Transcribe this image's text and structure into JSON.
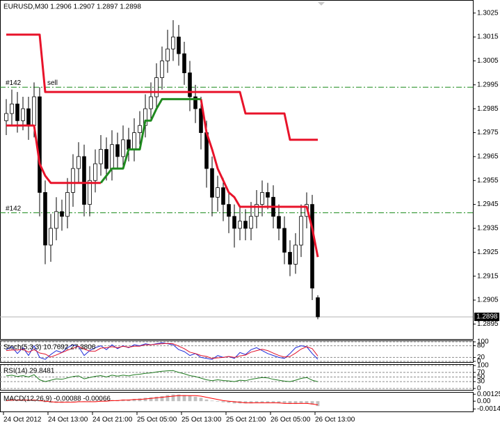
{
  "chart_data": [
    {
      "type": "candlestick",
      "title": "EURUSD,M30  1.2906 1.2907 1.2897 1.2898",
      "xlim": [
        0,
        84
      ],
      "xticks": [
        {
          "value": 0,
          "label": "24 Oct 2012"
        },
        {
          "value": 8,
          "label": "24 Oct 13:00"
        },
        {
          "value": 16,
          "label": "24 Oct 21:00"
        },
        {
          "value": 24,
          "label": "25 Oct 05:00"
        },
        {
          "value": 32,
          "label": "25 Oct 13:00"
        },
        {
          "value": 40,
          "label": "25 Oct 21:00"
        },
        {
          "value": 48,
          "label": "26 Oct 05:00"
        },
        {
          "value": 56,
          "label": "26 Oct 13:00"
        }
      ],
      "ylim": [
        1.2889,
        1.3029
      ],
      "yticks": [
        1.3025,
        1.3015,
        1.3005,
        1.2995,
        1.2985,
        1.2975,
        1.2965,
        1.2955,
        1.2945,
        1.2935,
        1.2925,
        1.2915,
        1.2905,
        1.2895
      ],
      "grid": false,
      "colors": {
        "up": "#ffffff",
        "down": "#000000",
        "wick": "#000000"
      },
      "open": [
        1.298,
        1.2983,
        1.2987,
        1.298,
        1.2985,
        1.2978,
        1.299,
        1.295,
        1.2928,
        1.2935,
        1.2942,
        1.294,
        1.295,
        1.296,
        1.2965,
        1.2945,
        1.2955,
        1.2962,
        1.2968,
        1.296,
        1.297,
        1.2965,
        1.2972,
        1.2968,
        1.2975,
        1.2978,
        1.2985,
        1.299,
        1.2998,
        1.3005,
        1.301,
        1.3015,
        1.3008,
        1.3,
        1.299,
        1.2985,
        1.2975,
        1.296,
        1.2948,
        1.2952,
        1.2945,
        1.294,
        1.2935,
        1.2938,
        1.2935,
        1.294,
        1.2945,
        1.295,
        1.2948,
        1.294,
        1.2935,
        1.2925,
        1.292,
        1.2928,
        1.294,
        1.2945,
        1.2906
      ],
      "high": [
        1.2989,
        1.2993,
        1.2992,
        1.299,
        1.299,
        1.2996,
        1.2994,
        1.2955,
        1.2941,
        1.2948,
        1.2947,
        1.2956,
        1.2966,
        1.2971,
        1.297,
        1.2961,
        1.2968,
        1.2974,
        1.2973,
        1.2976,
        1.2975,
        1.2978,
        1.2977,
        1.2981,
        1.2984,
        1.2991,
        1.2996,
        1.3004,
        1.3011,
        1.3018,
        1.3022,
        1.302,
        1.3013,
        1.3005,
        1.2995,
        1.299,
        1.298,
        1.2965,
        1.2957,
        1.2956,
        1.295,
        1.2945,
        1.2944,
        1.2943,
        1.2946,
        1.2951,
        1.2955,
        1.2954,
        1.2953,
        1.2945,
        1.294,
        1.293,
        1.2933,
        1.2945,
        1.295,
        1.2949,
        1.2907
      ],
      "low": [
        1.2974,
        1.2978,
        1.2975,
        1.2976,
        1.2972,
        1.2973,
        1.294,
        1.292,
        1.2921,
        1.293,
        1.2934,
        1.2935,
        1.2944,
        1.2954,
        1.294,
        1.294,
        1.295,
        1.2957,
        1.2955,
        1.2955,
        1.296,
        1.296,
        1.2963,
        1.2963,
        1.297,
        1.2973,
        1.298,
        1.2985,
        1.2993,
        1.3,
        1.3005,
        1.3003,
        1.2995,
        1.2984,
        1.2979,
        1.2968,
        1.2952,
        1.294,
        1.2942,
        1.2938,
        1.2933,
        1.2927,
        1.293,
        1.293,
        1.293,
        1.2935,
        1.294,
        1.2943,
        1.2935,
        1.293,
        1.292,
        1.2915,
        1.2916,
        1.2923,
        1.2935,
        1.2905,
        1.2897
      ],
      "close": [
        1.2983,
        1.2987,
        1.298,
        1.2985,
        1.2978,
        1.299,
        1.295,
        1.2928,
        1.2935,
        1.2942,
        1.294,
        1.295,
        1.296,
        1.2965,
        1.2945,
        1.2955,
        1.2962,
        1.2968,
        1.296,
        1.297,
        1.2965,
        1.2972,
        1.2968,
        1.2975,
        1.2978,
        1.2985,
        1.299,
        1.2998,
        1.3005,
        1.301,
        1.3015,
        1.3008,
        1.3,
        1.299,
        1.2985,
        1.2975,
        1.296,
        1.2948,
        1.2952,
        1.2945,
        1.294,
        1.2935,
        1.2938,
        1.2935,
        1.294,
        1.2945,
        1.295,
        1.2948,
        1.294,
        1.2935,
        1.2925,
        1.292,
        1.2928,
        1.294,
        1.2945,
        1.291,
        1.2898
      ],
      "lines": [
        {
          "color": "#e8132a",
          "values": [
            1.3016,
            1.3016,
            1.3016,
            1.3016,
            1.3016,
            1.3016,
            1.3016,
            1.2992,
            1.2992,
            1.2992,
            1.2992,
            1.2992,
            1.2992,
            1.2992,
            1.2992,
            1.2992,
            1.2992,
            1.2992,
            1.2992,
            1.2992,
            1.2992,
            1.2992,
            1.2992,
            1.2992,
            1.2992,
            1.2992,
            1.2992,
            1.2992,
            1.2992,
            1.2992,
            1.2992,
            1.2992,
            1.2992,
            1.2992,
            1.2992,
            1.2992,
            1.2992,
            1.2992,
            1.2992,
            1.2992,
            1.2992,
            1.2992,
            1.2992,
            1.2983,
            1.2983,
            1.2983,
            1.2983,
            1.2983,
            1.2983,
            1.2983,
            1.2983,
            1.2972,
            1.2972,
            1.2972,
            1.2972,
            1.2972,
            1.2972
          ]
        },
        {
          "color": "#e8132a",
          "values": [
            1.2978,
            1.2978,
            1.2978,
            1.2978,
            1.2978,
            1.2978,
            1.2962,
            1.2957,
            1.2954,
            1.2954,
            1.2954,
            1.2954,
            1.2954,
            1.2954,
            1.2954,
            1.2954,
            1.2954,
            1.2954,
            null,
            null,
            null,
            null,
            null,
            null,
            null,
            null,
            null,
            null,
            null,
            null,
            null,
            null,
            null,
            null,
            null,
            1.2989,
            1.2975,
            1.2968,
            1.296,
            1.2955,
            1.295,
            1.2948,
            1.2944,
            1.2944,
            1.2944,
            1.2944,
            1.2944,
            1.2944,
            1.2944,
            1.2944,
            1.2944,
            1.2944,
            1.2944,
            1.2944,
            1.2944,
            1.2935,
            1.2923
          ]
        },
        {
          "color": "#1f8a1f",
          "values": [
            null,
            null,
            null,
            null,
            null,
            null,
            null,
            null,
            null,
            null,
            null,
            null,
            null,
            null,
            null,
            null,
            null,
            1.2954,
            1.2957,
            1.296,
            1.296,
            1.296,
            1.2968,
            1.2968,
            1.2968,
            1.298,
            1.298,
            1.2985,
            1.2989,
            1.2989,
            1.2989,
            1.2989,
            1.2989,
            1.2989,
            1.2989,
            1.2989,
            null,
            null,
            null,
            null,
            null,
            null,
            null,
            null,
            null,
            null,
            null,
            null,
            null,
            null,
            null,
            null,
            null,
            null,
            null,
            null,
            null
          ]
        }
      ],
      "hlines": [
        {
          "value": 1.2994,
          "label": "#142",
          "text": "sell",
          "color": "#1a8a1a"
        },
        {
          "value": 1.29415,
          "label": "#142",
          "color": "#1a8a1a"
        }
      ],
      "current_price": {
        "value": 1.2898,
        "label": "1.2898"
      }
    },
    {
      "type": "line",
      "title": "Stoch(5,3,3) 10.7692 27.3806",
      "ylim": [
        0,
        100
      ],
      "yticks": [
        100,
        80,
        20,
        0
      ],
      "grid": true,
      "series": [
        {
          "color": "#1e2bd8",
          "values": [
            60,
            75,
            40,
            70,
            30,
            80,
            20,
            10,
            35,
            55,
            45,
            70,
            85,
            75,
            30,
            55,
            70,
            80,
            60,
            85,
            65,
            80,
            70,
            85,
            80,
            90,
            85,
            90,
            95,
            90,
            85,
            60,
            50,
            30,
            40,
            20,
            15,
            10,
            30,
            20,
            25,
            15,
            45,
            35,
            60,
            70,
            55,
            40,
            30,
            20,
            15,
            40,
            70,
            80,
            75,
            40,
            10.7692
          ]
        },
        {
          "color": "#e0102a",
          "values": [
            55,
            58,
            58,
            62,
            47,
            60,
            43,
            37,
            22,
            33,
            45,
            57,
            67,
            77,
            63,
            53,
            52,
            68,
            70,
            75,
            70,
            77,
            72,
            78,
            78,
            85,
            85,
            88,
            90,
            92,
            90,
            78,
            65,
            47,
            40,
            30,
            25,
            15,
            18,
            20,
            25,
            20,
            28,
            32,
            47,
            55,
            62,
            55,
            42,
            30,
            22,
            25,
            42,
            63,
            75,
            65,
            27.3806
          ]
        }
      ]
    },
    {
      "type": "line",
      "title": "RSI(14) 29.8481",
      "ylim": [
        0,
        100
      ],
      "yticks": [
        100,
        70,
        50,
        30,
        0
      ],
      "grid": true,
      "series": [
        {
          "color": "#1f7a1f",
          "values": [
            55,
            58,
            52,
            56,
            50,
            60,
            38,
            30,
            36,
            42,
            40,
            46,
            52,
            55,
            42,
            48,
            53,
            56,
            50,
            58,
            54,
            58,
            55,
            60,
            62,
            66,
            68,
            72,
            75,
            77,
            78,
            70,
            64,
            56,
            52,
            45,
            38,
            34,
            38,
            35,
            33,
            30,
            36,
            34,
            40,
            44,
            48,
            46,
            40,
            36,
            32,
            30,
            36,
            44,
            48,
            36,
            29.8481
          ]
        }
      ]
    },
    {
      "type": "bar",
      "title": "MACD(12,26,9) -0.00088 -0.00066",
      "ylim": [
        -0.0016,
        0.0014
      ],
      "yticks": [
        0.00125,
        {
          "value": 0,
          "label": "0.00"
        },
        -0.0014
      ],
      "grid": false,
      "color": "#c0c0c0",
      "values": [
        0.0002,
        0.0002,
        0.0002,
        0.0002,
        0.0001,
        0.0002,
        0.0,
        -0.0002,
        -0.0003,
        -0.0003,
        -0.0003,
        -0.0002,
        -0.0001,
        0.0,
        -0.0001,
        -0.0001,
        0.0,
        0.0001,
        0.0001,
        0.0002,
        0.0002,
        0.0003,
        0.0003,
        0.0004,
        0.0005,
        0.0006,
        0.0007,
        0.0008,
        0.0009,
        0.0011,
        0.0012,
        0.0012,
        0.0011,
        0.001,
        0.0008,
        0.0006,
        0.0003,
        0.0001,
        -0.0001,
        -0.0002,
        -0.0003,
        -0.0004,
        -0.0004,
        -0.0004,
        -0.0004,
        -0.0003,
        -0.0003,
        -0.0003,
        -0.0003,
        -0.0004,
        -0.0004,
        -0.0005,
        -0.0005,
        -0.0004,
        -0.0004,
        -0.0006,
        -0.00088
      ],
      "series": [
        {
          "color": "#ff0000",
          "values": [
            0.0001,
            0.0002,
            0.0002,
            0.0002,
            0.0002,
            0.0002,
            0.0001,
            0.0,
            -0.0001,
            -0.0002,
            -0.0002,
            -0.0002,
            -0.0002,
            -0.0001,
            -0.0001,
            -0.0001,
            -0.0001,
            0.0,
            0.0,
            0.0001,
            0.0001,
            0.0002,
            0.0002,
            0.0003,
            0.0003,
            0.0004,
            0.0005,
            0.0006,
            0.0007,
            0.0008,
            0.0009,
            0.001,
            0.001,
            0.001,
            0.001,
            0.0009,
            0.0007,
            0.0005,
            0.0003,
            0.0001,
            0.0,
            -0.0001,
            -0.0002,
            -0.0003,
            -0.0003,
            -0.0003,
            -0.0003,
            -0.0003,
            -0.0003,
            -0.0003,
            -0.0004,
            -0.0004,
            -0.0004,
            -0.0004,
            -0.0004,
            -0.0005,
            -0.00066
          ]
        }
      ]
    }
  ]
}
